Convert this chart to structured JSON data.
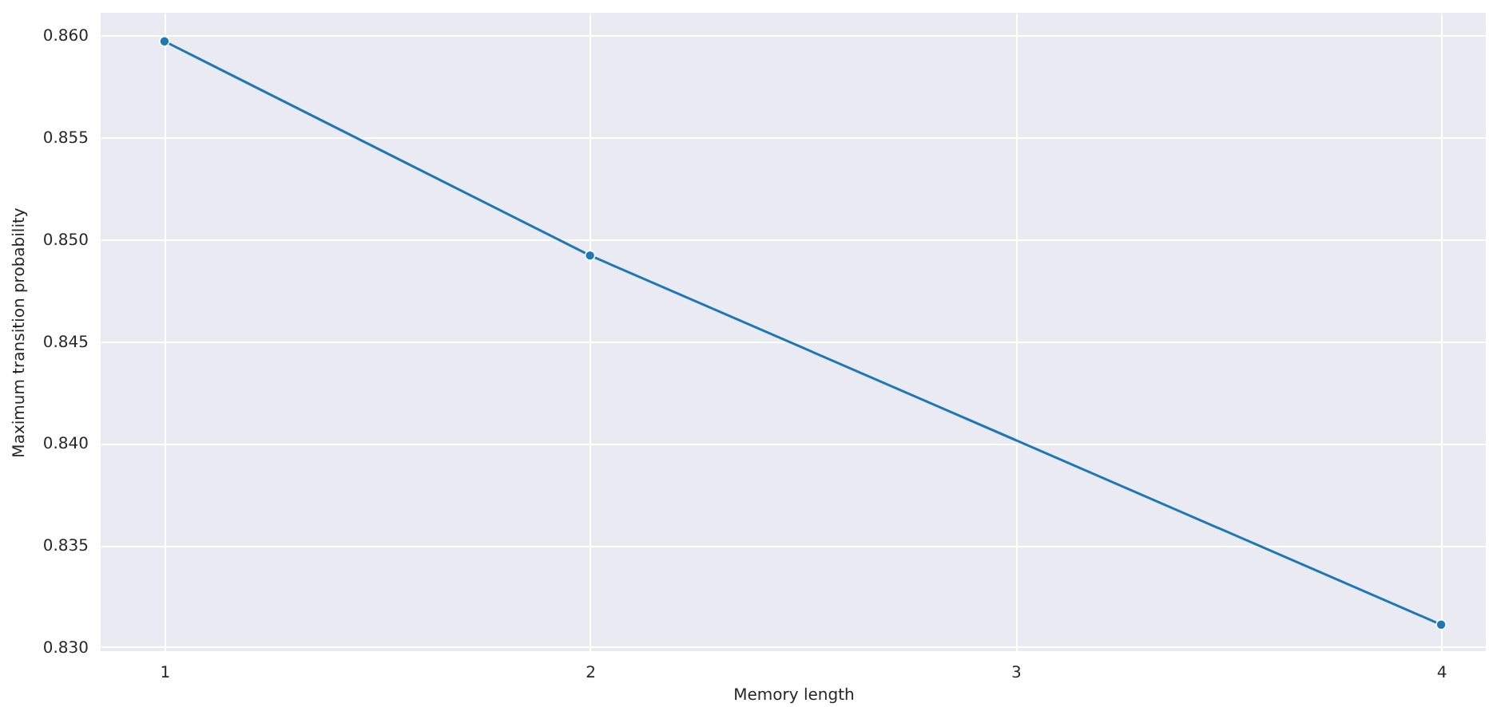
{
  "chart_data": {
    "type": "line",
    "xlabel": "Memory length",
    "ylabel": "Maximum transition probability",
    "x": [
      1,
      2,
      4
    ],
    "series": [
      {
        "color": "#1f77b4",
        "values": [
          0.8597,
          0.8492,
          0.8311
        ]
      }
    ],
    "xlim": [
      0.85,
      4.105
    ],
    "xticks": [
      1,
      2,
      3,
      4
    ],
    "ylim": [
      0.8298,
      0.8611
    ],
    "yticks": [
      {
        "value": 0.83,
        "label": "0.830"
      },
      0.835,
      {
        "value": 0.84,
        "label": "0.840"
      },
      0.845,
      {
        "value": 0.85,
        "label": "0.850"
      },
      0.855,
      {
        "value": 0.86,
        "label": "0.860"
      }
    ],
    "grid": true,
    "marker": "circle",
    "line_style": "solid"
  }
}
